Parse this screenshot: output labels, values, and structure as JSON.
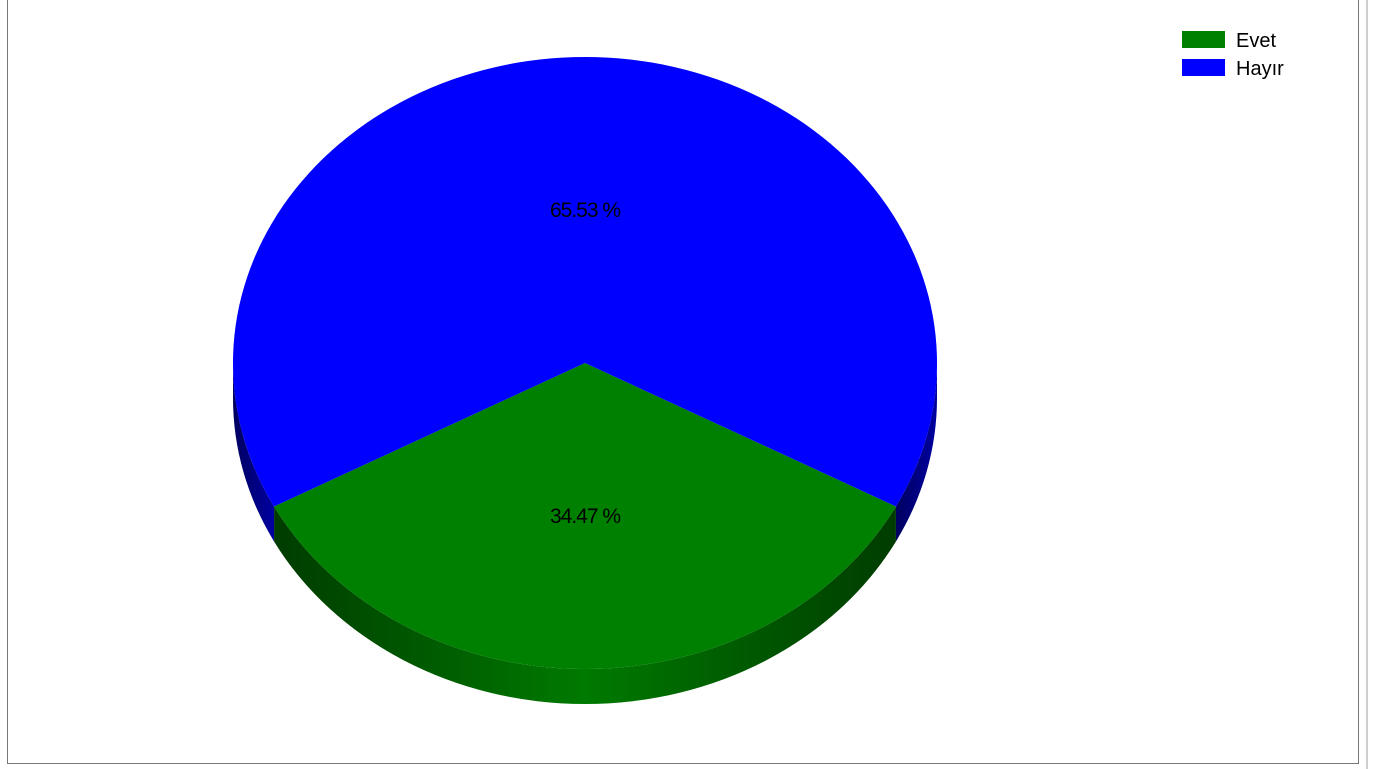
{
  "chart_data": {
    "type": "pie",
    "title": "",
    "slices": [
      {
        "name": "Evet",
        "value": 34.47,
        "label": "34.47 %",
        "color": "#008000",
        "side_color": "#005a00"
      },
      {
        "name": "Hayır",
        "value": 65.53,
        "label": "65.53 %",
        "color": "#0000ff",
        "side_color": "#00007a"
      }
    ],
    "legend": {
      "position": "top-right",
      "items": [
        {
          "label": "Evet",
          "color": "#008000"
        },
        {
          "label": "Hayır",
          "color": "#0000ff"
        }
      ]
    },
    "style": "3d"
  }
}
